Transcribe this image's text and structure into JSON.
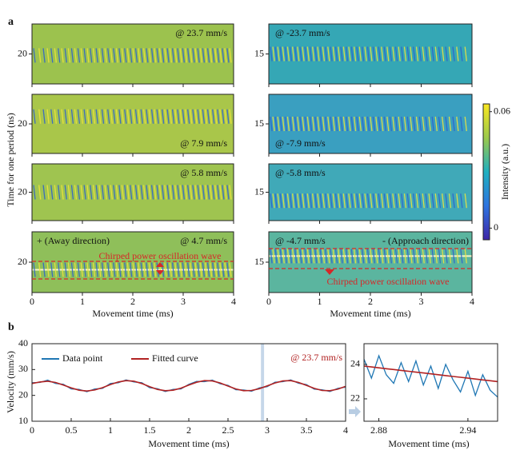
{
  "panel_a": {
    "label": "a",
    "ylabel": "Time for one period (ns)",
    "xlabel": "Movement time (ms)",
    "xlim": [
      0,
      4
    ],
    "xticks": [
      0,
      1,
      2,
      3,
      4
    ],
    "columns": [
      {
        "ylim": [
          16,
          24
        ],
        "yticks": [
          20
        ],
        "heatmaps": [
          {
            "label": "@ 23.7 mm/s",
            "background": "#9cc24e",
            "band_center": 19.8
          },
          {
            "label": "@ 7.9 mm/s",
            "background": "#a9c64a",
            "band_center": 21.0
          },
          {
            "label": "@ 5.8 mm/s",
            "background": "#9fc450",
            "band_center": 20.0
          },
          {
            "label": "@ 4.7 mm/s",
            "background": "#8fbf5a",
            "band_center": 19.0
          }
        ]
      },
      {
        "ylim": [
          11,
          19
        ],
        "yticks": [
          15
        ],
        "heatmaps": [
          {
            "label": "@ -23.7 mm/s",
            "background": "#35a7b5",
            "band_center": 15.0
          },
          {
            "label": "@ -7.9 mm/s",
            "background": "#3a9fc0",
            "band_center": 15.0
          },
          {
            "label": "@ -5.8 mm/s",
            "background": "#40a9b8",
            "band_center": 13.8
          },
          {
            "label": "@ -4.7 mm/s",
            "background": "#5bb59f",
            "band_center": 15.8
          }
        ]
      }
    ],
    "annotations": {
      "away": "+ (Away direction)",
      "chirp_left": "Chirped power oscillation wave",
      "approach": "- (Approach direction)",
      "chirp_right": "Chirped power oscillation wave"
    },
    "colorbar": {
      "label": "Intensity (a.u.)",
      "lim": [
        -0.006,
        0.064
      ],
      "ticks": [
        0,
        0.06
      ]
    }
  },
  "panel_b": {
    "label": "b",
    "ylabel": "Velocity (mm/s)",
    "xlabel": "Movement time (ms)",
    "annotation": "@ 23.7 mm/s",
    "highlight": [
      2.92,
      2.96
    ],
    "xlim": [
      0,
      4
    ],
    "xticks": [
      0,
      0.5,
      1,
      1.5,
      2,
      2.5,
      3,
      3.5,
      4
    ],
    "ylim": [
      10,
      40
    ],
    "yticks": [
      10,
      20,
      30,
      40
    ],
    "x": [
      0,
      0.1,
      0.2,
      0.3,
      0.4,
      0.5,
      0.6,
      0.7,
      0.8,
      0.9,
      1,
      1.1,
      1.2,
      1.3,
      1.4,
      1.5,
      1.6,
      1.7,
      1.8,
      1.9,
      2,
      2.1,
      2.2,
      2.3,
      2.4,
      2.5,
      2.6,
      2.7,
      2.8,
      2.9,
      3,
      3.1,
      3.2,
      3.3,
      3.4,
      3.5,
      3.6,
      3.7,
      3.8,
      3.9,
      4
    ],
    "series": [
      {
        "name": "Data point",
        "color": "#1f77b4",
        "values": [
          24.9,
          25.0,
          25.9,
          24.6,
          24.3,
          22.5,
          22.3,
          21.4,
          22.5,
          22.7,
          24.6,
          24.9,
          26.0,
          25.2,
          24.9,
          23.0,
          22.6,
          21.5,
          22.3,
          22.5,
          24.3,
          25.4,
          25.3,
          25.9,
          24.5,
          23.9,
          22.2,
          22.1,
          21.6,
          22.9,
          23.4,
          25.1,
          25.3,
          26.0,
          24.7,
          24.2,
          22.4,
          22.2,
          21.5,
          22.7,
          23.2
        ]
      },
      {
        "name": "Fitted curve",
        "color": "#b22222",
        "values": [
          24.6,
          25.2,
          25.5,
          25.0,
          24.0,
          22.9,
          22.0,
          21.7,
          22.1,
          23.0,
          24.2,
          25.2,
          25.7,
          25.5,
          24.6,
          23.4,
          22.3,
          21.8,
          22.0,
          22.8,
          24.0,
          25.1,
          25.7,
          25.6,
          24.8,
          23.6,
          22.5,
          21.8,
          21.9,
          22.6,
          23.7,
          24.8,
          25.6,
          25.7,
          25.0,
          23.9,
          22.7,
          21.9,
          21.8,
          22.4,
          23.5
        ]
      }
    ],
    "inset": {
      "xlabel": "Movement time (ms)",
      "xlim": [
        2.87,
        2.96
      ],
      "xticks": [
        2.88,
        2.94
      ],
      "ylim": [
        20.7,
        25.2
      ],
      "yticks": [
        22,
        24
      ],
      "x": [
        2.87,
        2.875,
        2.88,
        2.885,
        2.89,
        2.895,
        2.9,
        2.905,
        2.91,
        2.915,
        2.92,
        2.925,
        2.93,
        2.935,
        2.94,
        2.945,
        2.95,
        2.955,
        2.96
      ],
      "series": [
        {
          "color": "#1f77b4",
          "values": [
            24.3,
            23.2,
            24.5,
            23.4,
            22.9,
            24.1,
            23.0,
            24.2,
            22.8,
            23.9,
            22.6,
            24.0,
            23.1,
            22.4,
            23.6,
            22.2,
            23.4,
            22.5,
            22.1
          ]
        },
        {
          "color": "#b22222",
          "values": [
            23.9,
            23.85,
            23.8,
            23.75,
            23.7,
            23.65,
            23.6,
            23.55,
            23.5,
            23.45,
            23.4,
            23.35,
            23.3,
            23.25,
            23.2,
            23.15,
            23.1,
            23.05,
            23.0
          ]
        }
      ]
    }
  }
}
